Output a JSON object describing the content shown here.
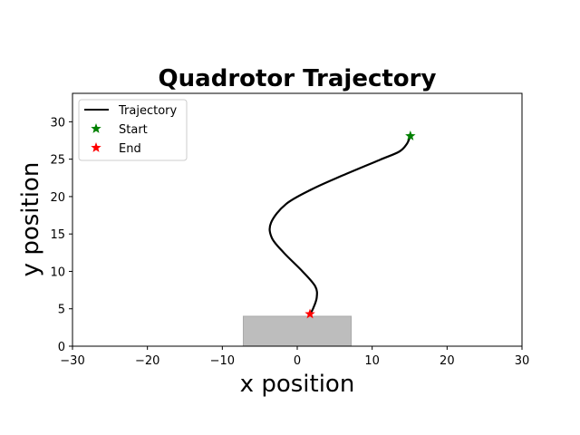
{
  "chart_data": {
    "type": "line",
    "title": "Quadrotor Trajectory",
    "xlabel": "x position",
    "ylabel": "y position",
    "xlim": [
      -30,
      30
    ],
    "ylim": [
      0,
      33.8
    ],
    "x_ticks": [
      -30,
      -20,
      -10,
      0,
      10,
      20,
      30
    ],
    "y_ticks": [
      0,
      5,
      10,
      15,
      20,
      25,
      30
    ],
    "x_tick_labels": [
      "−30",
      "−20",
      "−10",
      "0",
      "10",
      "20",
      "30"
    ],
    "y_tick_labels": [
      "0",
      "5",
      "10",
      "15",
      "20",
      "25",
      "30"
    ],
    "grid": false,
    "legend": {
      "position": "top-left",
      "entries": [
        {
          "label": "Trajectory",
          "marker": "line",
          "color": "#000000"
        },
        {
          "label": "Start",
          "marker": "star",
          "color": "#008000"
        },
        {
          "label": "End",
          "marker": "star",
          "color": "#ff0000"
        }
      ]
    },
    "series": [
      {
        "name": "Trajectory",
        "color": "#000000",
        "x": [
          15.1,
          14.6,
          13.6,
          11.0,
          6.0,
          2.0,
          -1.5,
          -3.5,
          -3.4,
          -1.8,
          0.7,
          2.4,
          2.6,
          2.1,
          1.7
        ],
        "y": [
          28.1,
          27.0,
          26.0,
          24.9,
          22.8,
          21.0,
          19.0,
          16.5,
          14.5,
          12.5,
          10.0,
          8.0,
          6.5,
          5.0,
          4.3
        ]
      }
    ],
    "points": [
      {
        "name": "Start",
        "x": 15.1,
        "y": 28.1,
        "color": "#008000"
      },
      {
        "name": "End",
        "x": 1.7,
        "y": 4.3,
        "color": "#ff0000"
      }
    ],
    "rectangle": {
      "x0": -7.2,
      "x1": 7.2,
      "y0": 0,
      "y1": 4.0,
      "fill": "#bdbdbd",
      "edge": "#a9a9a9"
    }
  }
}
